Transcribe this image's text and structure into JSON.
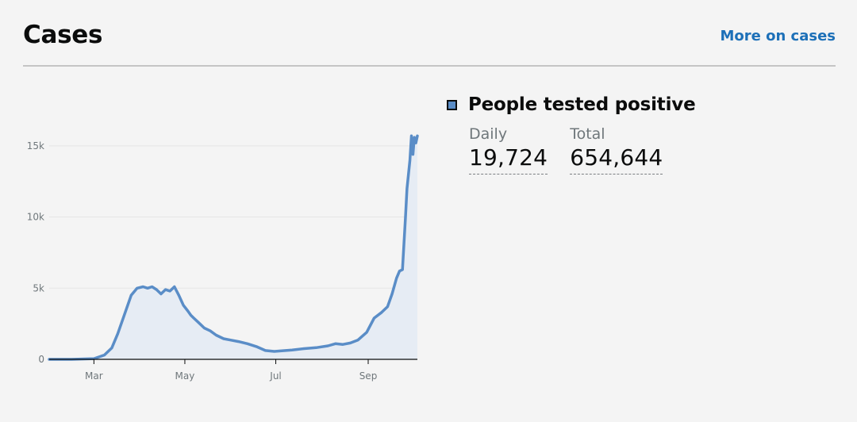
{
  "card": {
    "title": "Cases",
    "more_link": "More on cases"
  },
  "metric": {
    "name": "People tested positive",
    "swatch_color": "#5a8dc7",
    "daily_label": "Daily",
    "daily_value": "19,724",
    "total_label": "Total",
    "total_value": "654,644"
  },
  "chart_data": {
    "type": "area",
    "title": "",
    "xlabel": "",
    "ylabel": "",
    "ylim": [
      0,
      18000
    ],
    "yticks": [
      0,
      5000,
      10000,
      15000
    ],
    "ytick_labels": [
      "0",
      "5k",
      "10k",
      "15k"
    ],
    "xlim": [
      "2020-01-31",
      "2020-10-04"
    ],
    "xticks": [
      "2020-03-01",
      "2020-05-01",
      "2020-07-01",
      "2020-09-01"
    ],
    "xtick_labels": [
      "Mar",
      "May",
      "Jul",
      "Sep"
    ],
    "grid": true,
    "colors": {
      "line": "#5a8dc7",
      "fill": "#e6ecf4",
      "grid": "#e5e5e5",
      "axis": "#0b0c0c"
    },
    "series": [
      {
        "x": [
          "2020-01-31",
          "2020-02-15",
          "2020-03-01",
          "2020-03-08",
          "2020-03-13",
          "2020-03-17",
          "2020-03-22",
          "2020-03-26",
          "2020-03-30",
          "2020-04-03",
          "2020-04-06",
          "2020-04-09",
          "2020-04-12",
          "2020-04-15",
          "2020-04-18",
          "2020-04-21",
          "2020-04-24",
          "2020-04-27",
          "2020-04-30",
          "2020-05-03",
          "2020-05-05",
          "2020-05-07",
          "2020-05-10",
          "2020-05-14",
          "2020-05-18",
          "2020-05-22",
          "2020-05-27",
          "2020-06-01",
          "2020-06-06",
          "2020-06-12",
          "2020-06-18",
          "2020-06-24",
          "2020-06-30",
          "2020-07-05",
          "2020-07-12",
          "2020-07-20",
          "2020-07-28",
          "2020-08-05",
          "2020-08-10",
          "2020-08-15",
          "2020-08-20",
          "2020-08-25",
          "2020-08-31",
          "2020-09-05",
          "2020-09-10",
          "2020-09-14",
          "2020-09-17",
          "2020-09-20",
          "2020-09-22",
          "2020-09-24",
          "2020-09-26",
          "2020-09-27",
          "2020-09-29",
          "2020-09-30",
          "2020-10-01",
          "2020-10-02",
          "2020-10-03",
          "2020-10-04"
        ],
        "y": [
          0,
          0,
          50,
          300,
          800,
          1800,
          3300,
          4500,
          5000,
          5100,
          5000,
          5100,
          4900,
          4600,
          4900,
          4800,
          5100,
          4500,
          3800,
          3400,
          3100,
          2900,
          2600,
          2200,
          2000,
          1700,
          1450,
          1350,
          1250,
          1100,
          900,
          620,
          560,
          600,
          650,
          750,
          820,
          950,
          1100,
          1050,
          1150,
          1350,
          1900,
          2900,
          3300,
          3700,
          4600,
          5700,
          6200,
          6300,
          10000,
          12000,
          14000,
          15700,
          14400,
          15600,
          15200,
          15700
        ]
      }
    ]
  }
}
